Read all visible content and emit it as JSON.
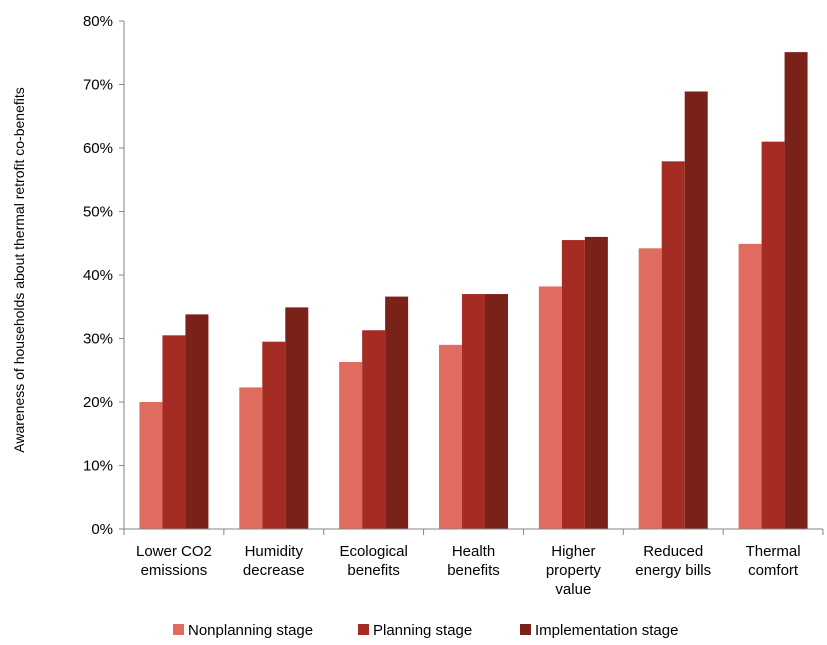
{
  "chart_data": {
    "type": "bar",
    "title": "",
    "xlabel": "",
    "ylabel": "Awareness of households about thermal retrofit co-benefits",
    "ylim": [
      0,
      0.8
    ],
    "yticks": [
      "0%",
      "10%",
      "20%",
      "30%",
      "40%",
      "50%",
      "60%",
      "70%",
      "80%"
    ],
    "categories": [
      [
        "Lower CO2",
        "emissions"
      ],
      [
        "Humidity",
        "decrease"
      ],
      [
        "Ecological",
        "benefits"
      ],
      [
        "Health",
        "benefits"
      ],
      [
        "Higher",
        "property",
        "value"
      ],
      [
        "Reduced",
        "energy bills"
      ],
      [
        "Thermal",
        "comfort"
      ]
    ],
    "series": [
      {
        "name": "Nonplanning stage",
        "color": "#E06C60",
        "values": [
          0.2,
          0.223,
          0.263,
          0.29,
          0.382,
          0.442,
          0.449
        ]
      },
      {
        "name": "Planning stage",
        "color": "#A52C22",
        "values": [
          0.305,
          0.295,
          0.313,
          0.37,
          0.455,
          0.579,
          0.61
        ]
      },
      {
        "name": "Implementation stage",
        "color": "#7A2119",
        "values": [
          0.338,
          0.349,
          0.366,
          0.37,
          0.46,
          0.689,
          0.751
        ]
      }
    ],
    "grid": false,
    "legend_position": "bottom"
  }
}
